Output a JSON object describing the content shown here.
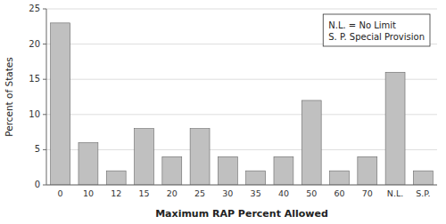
{
  "chart_data": {
    "type": "bar",
    "categories": [
      "0",
      "10",
      "12",
      "15",
      "20",
      "25",
      "30",
      "35",
      "40",
      "50",
      "60",
      "70",
      "N.L.",
      "S.P."
    ],
    "values": [
      23,
      6,
      2,
      8,
      4,
      8,
      4,
      2,
      4,
      12,
      2,
      4,
      16,
      2
    ],
    "color": "#c0c0c0",
    "x_label": "Maximum RAP Percent Allowed",
    "y_label": "Percent of States",
    "ylim": [
      0,
      25
    ],
    "yticks": [
      0,
      5,
      10,
      15,
      20,
      25
    ],
    "grid": true,
    "annotations": [
      "N.L. = No Limit",
      "S. P. Special Provision"
    ]
  }
}
